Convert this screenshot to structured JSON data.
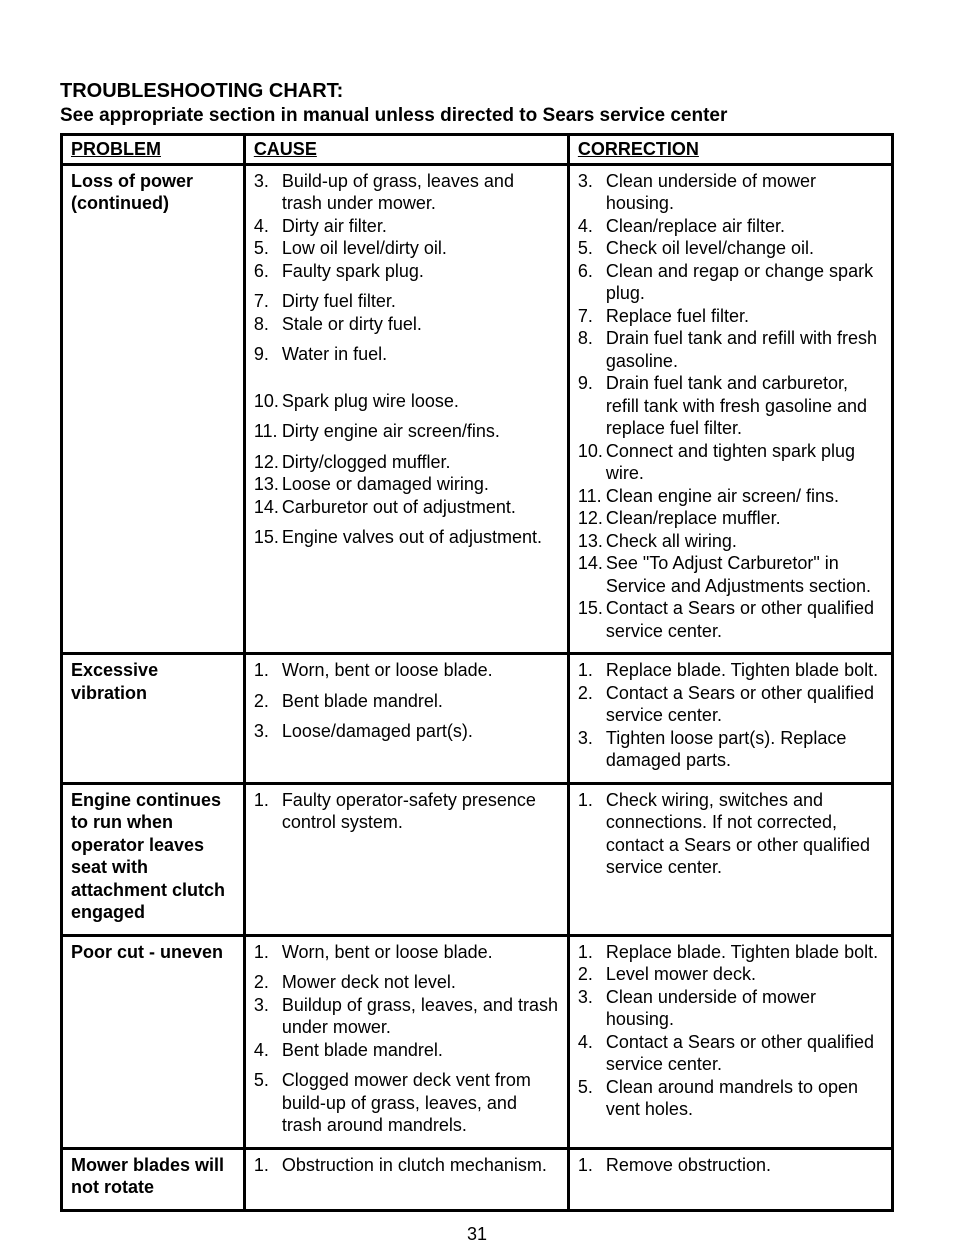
{
  "title": "TROUBLESHOOTING CHART:",
  "subtitle": "See appropriate section in manual unless directed to Sears service center",
  "headers": {
    "problem": "PROBLEM",
    "cause": "CAUSE",
    "correction": "CORRECTION"
  },
  "rows": [
    {
      "problem": "Loss of power (continued)",
      "causes": [
        {
          "n": "3.",
          "t": "Build-up of grass, leaves and trash under mower."
        },
        {
          "n": "4.",
          "t": "Dirty air filter."
        },
        {
          "n": "5.",
          "t": "Low oil level/dirty oil."
        },
        {
          "n": "6.",
          "t": "Faulty spark plug."
        },
        {
          "n": "",
          "t": ""
        },
        {
          "n": "7.",
          "t": "Dirty fuel filter."
        },
        {
          "n": "8.",
          "t": "Stale or dirty fuel."
        },
        {
          "n": "",
          "t": ""
        },
        {
          "n": "9.",
          "t": "Water in fuel."
        },
        {
          "n": "",
          "t": ""
        },
        {
          "n": "",
          "t": ""
        },
        {
          "n": "",
          "t": ""
        },
        {
          "n": "10.",
          "t": "Spark plug wire loose."
        },
        {
          "n": "",
          "t": ""
        },
        {
          "n": "11.",
          "t": "Dirty engine air screen/fins."
        },
        {
          "n": "",
          "t": ""
        },
        {
          "n": "12.",
          "t": "Dirty/clogged muffler."
        },
        {
          "n": "13.",
          "t": "Loose or damaged wiring."
        },
        {
          "n": "14.",
          "t": "Carburetor out of adjustment."
        },
        {
          "n": "",
          "t": ""
        },
        {
          "n": "15.",
          "t": "Engine valves out of adjustment."
        }
      ],
      "corrections": [
        {
          "n": "3.",
          "t": "Clean underside of mower housing."
        },
        {
          "n": "4.",
          "t": "Clean/replace air filter."
        },
        {
          "n": "5.",
          "t": "Check oil level/change oil."
        },
        {
          "n": "6.",
          "t": "Clean and regap or change spark plug."
        },
        {
          "n": "7.",
          "t": "Replace fuel filter."
        },
        {
          "n": "8.",
          "t": "Drain fuel tank and refill with fresh gasoline."
        },
        {
          "n": "9.",
          "t": "Drain fuel tank and carburetor, refill tank with fresh gasoline and replace fuel filter."
        },
        {
          "n": "10.",
          "t": "Connect and tighten spark plug wire."
        },
        {
          "n": "11.",
          "t": "Clean engine air screen/ fins."
        },
        {
          "n": "12.",
          "t": "Clean/replace muffler."
        },
        {
          "n": "13.",
          "t": "Check all wiring."
        },
        {
          "n": "14.",
          "t": "See \"To Adjust Carburetor\" in Service and Adjustments section."
        },
        {
          "n": "15.",
          "t": "Contact a Sears or other qualified service center."
        }
      ]
    },
    {
      "problem": "Excessive vibration",
      "causes": [
        {
          "n": "1.",
          "t": "Worn, bent or loose blade."
        },
        {
          "n": "",
          "t": ""
        },
        {
          "n": "2.",
          "t": "Bent blade mandrel."
        },
        {
          "n": "",
          "t": ""
        },
        {
          "n": "3.",
          "t": "Loose/damaged part(s)."
        }
      ],
      "corrections": [
        {
          "n": "1.",
          "t": "Replace blade. Tighten blade bolt."
        },
        {
          "n": "2.",
          "t": "Contact a Sears or other qualified service center."
        },
        {
          "n": "3.",
          "t": "Tighten loose part(s). Replace damaged parts."
        }
      ]
    },
    {
      "problem": "Engine continues to run when operator leaves seat with attachment clutch engaged",
      "causes": [
        {
          "n": "1.",
          "t": "Faulty operator-safety presence control system."
        }
      ],
      "corrections": [
        {
          "n": "1.",
          "t": "Check wiring, switches and connections. If not corrected, contact a Sears or other qualified service center."
        }
      ]
    },
    {
      "problem": "Poor cut - uneven",
      "causes": [
        {
          "n": "1.",
          "t": "Worn, bent or loose blade."
        },
        {
          "n": "",
          "t": ""
        },
        {
          "n": "2.",
          "t": "Mower deck not level."
        },
        {
          "n": "3.",
          "t": "Buildup of grass, leaves, and trash under mower."
        },
        {
          "n": "4.",
          "t": "Bent blade mandrel."
        },
        {
          "n": "",
          "t": ""
        },
        {
          "n": "5.",
          "t": "Clogged mower deck vent from build-up of grass, leaves, and trash around mandrels."
        }
      ],
      "corrections": [
        {
          "n": "1.",
          "t": "Replace blade.  Tighten blade bolt."
        },
        {
          "n": "2.",
          "t": "Level mower deck."
        },
        {
          "n": "3.",
          "t": "Clean underside of mower housing."
        },
        {
          "n": "4.",
          "t": "Contact a Sears or other qualified service center."
        },
        {
          "n": "5.",
          "t": "Clean around mandrels to open vent holes."
        }
      ]
    },
    {
      "problem": "Mower blades will not rotate",
      "causes": [
        {
          "n": "1.",
          "t": "Obstruction in clutch mechanism."
        }
      ],
      "corrections": [
        {
          "n": "1.",
          "t": "Remove obstruction."
        }
      ]
    }
  ],
  "page_number": "31"
}
